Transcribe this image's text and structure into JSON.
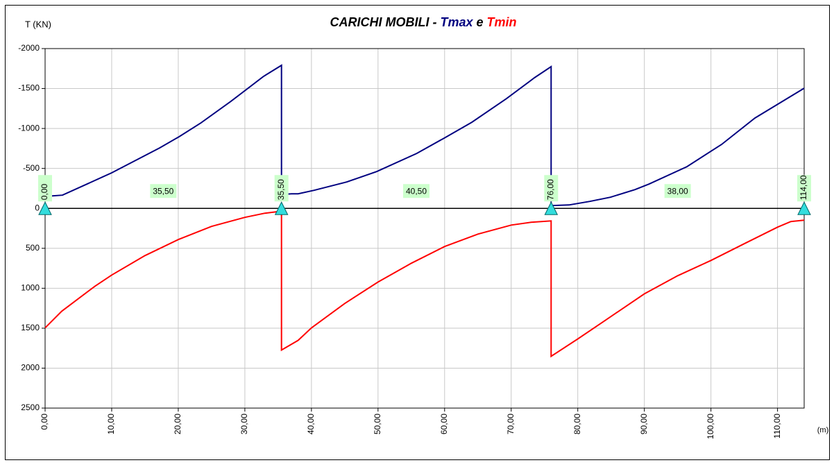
{
  "chart_data": {
    "type": "line",
    "title": "CARICHI MOBILI -",
    "title_connector": "e",
    "y_label": "T (KN)",
    "x_label": "(m)",
    "xlim": [
      0,
      114
    ],
    "ylim": [
      -2000,
      2500
    ],
    "y_inverted": true,
    "grid": true,
    "xticks": [
      {
        "value": 0,
        "label": "0,00"
      },
      {
        "value": 10,
        "label": "10,00"
      },
      {
        "value": 20,
        "label": "20,00"
      },
      {
        "value": 30,
        "label": "30,00"
      },
      {
        "value": 40,
        "label": "40,00"
      },
      {
        "value": 50,
        "label": "50,00"
      },
      {
        "value": 60,
        "label": "60,00"
      },
      {
        "value": 70,
        "label": "70,00"
      },
      {
        "value": 80,
        "label": "80,00"
      },
      {
        "value": 90,
        "label": "90,00"
      },
      {
        "value": 100,
        "label": "100,00"
      },
      {
        "value": 110,
        "label": "110,00"
      }
    ],
    "yticks": [
      -2000,
      -1500,
      -1000,
      -500,
      0,
      500,
      1000,
      1500,
      2000,
      2500
    ],
    "supports": [
      {
        "value": 0,
        "label": "0,00"
      },
      {
        "value": 35.5,
        "label": "35,50"
      },
      {
        "value": 76,
        "label": "76,00"
      },
      {
        "value": 114,
        "label": "114,00"
      }
    ],
    "spans": [
      {
        "value": 35.5,
        "label": "35,50"
      },
      {
        "value": 40.5,
        "label": "40,50"
      },
      {
        "value": 38,
        "label": "38,00"
      }
    ],
    "series": [
      {
        "name": "Tmax",
        "color": "#000080",
        "x": [
          0,
          2.6,
          10,
          17.2,
          20.1,
          23.4,
          27.9,
          32.8,
          35.5,
          35.5,
          37,
          38,
          40.4,
          45.3,
          47.4,
          49.8,
          55.8,
          59.9,
          64.1,
          69.3,
          73.5,
          76,
          76,
          78.7,
          81.8,
          84.9,
          88.6,
          90.7,
          96.4,
          101.6,
          106.6,
          114
        ],
        "values": [
          -150,
          -165,
          -445,
          -757,
          -896,
          -1070,
          -1339,
          -1652,
          -1791,
          -174,
          -183,
          -183,
          -226,
          -330,
          -391,
          -461,
          -687,
          -878,
          -1078,
          -1374,
          -1635,
          -1774,
          -35,
          -43,
          -87,
          -139,
          -235,
          -304,
          -522,
          -800,
          -1130,
          -1504
        ]
      },
      {
        "name": "Tmin",
        "color": "#ff0000",
        "x": [
          0,
          2.5,
          5,
          7.5,
          10,
          15,
          20,
          25,
          30,
          33,
          35.5,
          35.5,
          38,
          40,
          45,
          50,
          55,
          60,
          65,
          70,
          73,
          76,
          76,
          80,
          84,
          90,
          95,
          100,
          105,
          110,
          112,
          114
        ],
        "values": [
          1496,
          1287,
          1130,
          974,
          835,
          591,
          391,
          226,
          113,
          61,
          35,
          1774,
          1652,
          1496,
          1191,
          922,
          687,
          478,
          322,
          209,
          174,
          157,
          1852,
          1635,
          1409,
          1070,
          843,
          652,
          443,
          235,
          165,
          148
        ]
      }
    ]
  }
}
